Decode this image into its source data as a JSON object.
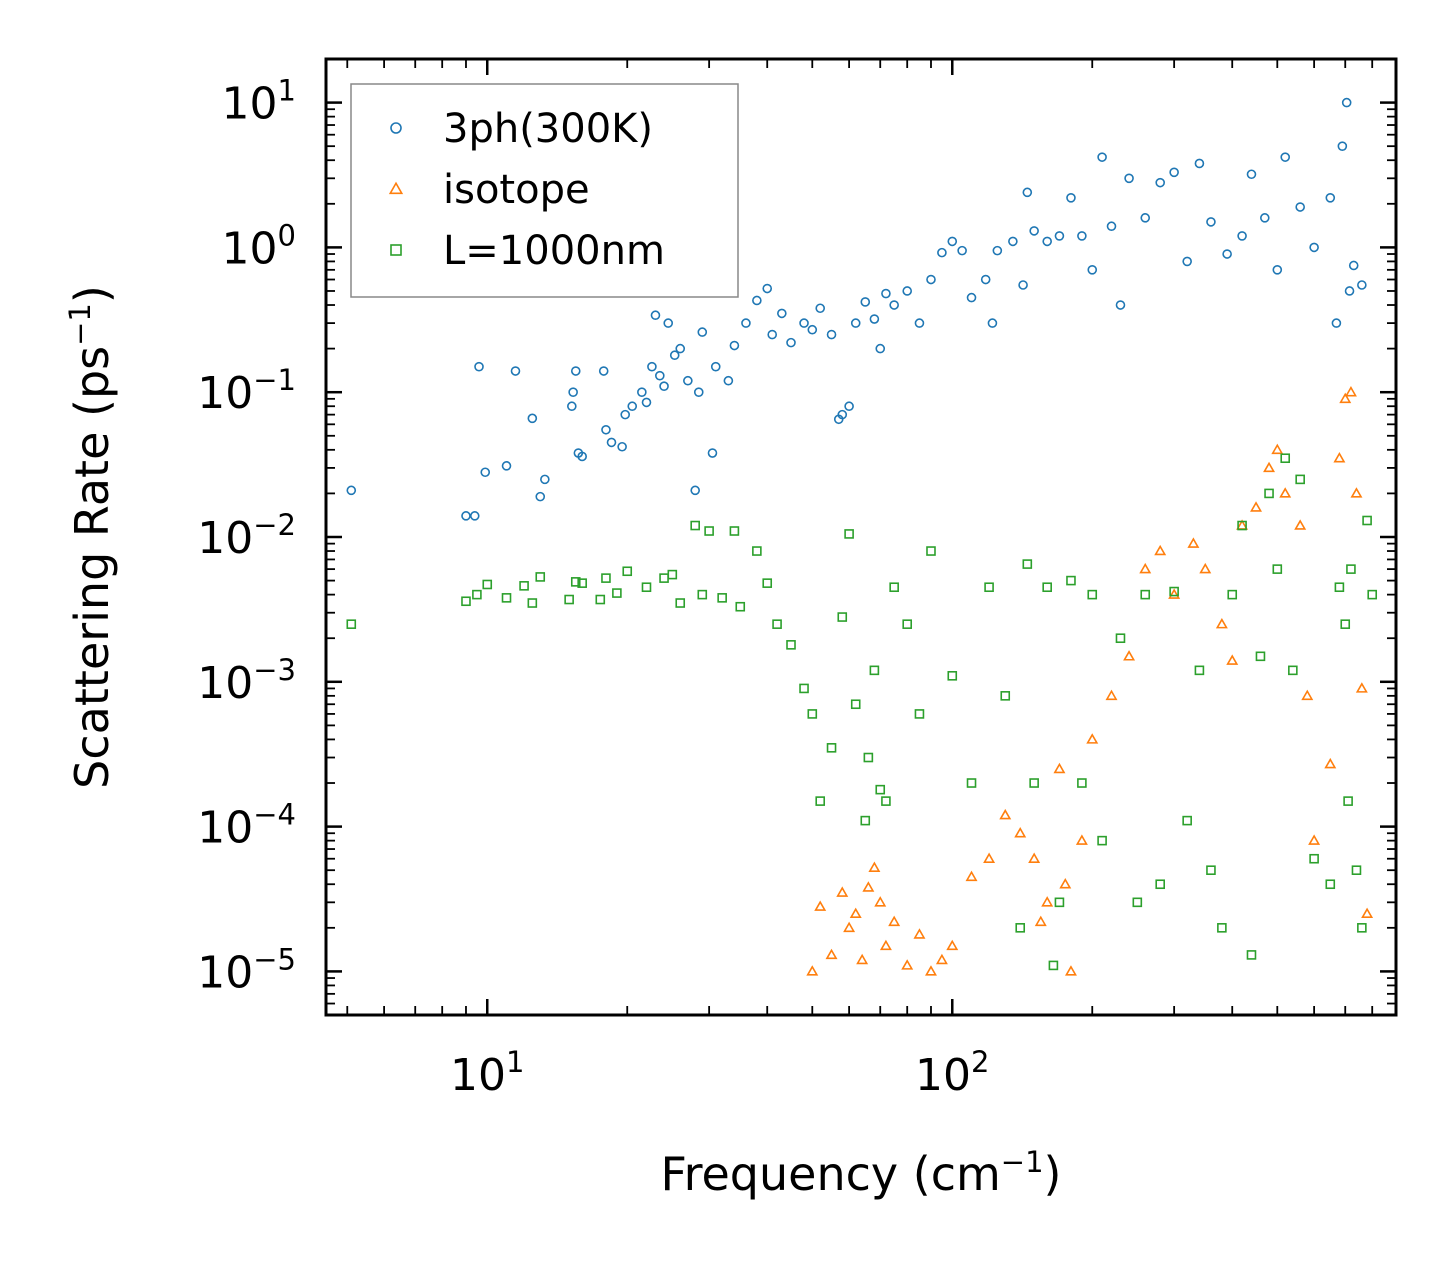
{
  "chart_data": {
    "type": "scatter",
    "title": "",
    "xlabel": "Frequency (cm",
    "xlabel_sup": "−1",
    "xlabel_end": ")",
    "ylabel": "Scattering Rate (ps",
    "ylabel_sup": "−1",
    "ylabel_end": ")",
    "xscale": "log",
    "yscale": "log",
    "xlim": [
      4.5,
      900
    ],
    "ylim": [
      5e-06,
      20
    ],
    "x_ticks": [
      {
        "value": 10,
        "base": "10",
        "exp": "1"
      },
      {
        "value": 100,
        "base": "10",
        "exp": "2"
      }
    ],
    "y_ticks": [
      {
        "value": 10,
        "base": "10",
        "exp": "1"
      },
      {
        "value": 1,
        "base": "10",
        "exp": "0"
      },
      {
        "value": 0.1,
        "base": "10",
        "exp": "−1"
      },
      {
        "value": 0.01,
        "base": "10",
        "exp": "−2"
      },
      {
        "value": 0.001,
        "base": "10",
        "exp": "−3"
      },
      {
        "value": 0.0001,
        "base": "10",
        "exp": "−4"
      },
      {
        "value": 1e-05,
        "base": "10",
        "exp": "−5"
      }
    ],
    "legend_position": "top-left",
    "series": [
      {
        "name": "3ph(300K)",
        "marker": "circle",
        "color": "#1f77b4",
        "points": [
          [
            5.1,
            0.021
          ],
          [
            9.0,
            0.014
          ],
          [
            9.4,
            0.014
          ],
          [
            9.6,
            0.15
          ],
          [
            9.9,
            0.028
          ],
          [
            11.0,
            0.031
          ],
          [
            11.5,
            0.14
          ],
          [
            12.5,
            0.066
          ],
          [
            13.0,
            0.019
          ],
          [
            13.3,
            0.025
          ],
          [
            15.2,
            0.08
          ],
          [
            15.3,
            0.1
          ],
          [
            15.5,
            0.14
          ],
          [
            15.7,
            0.038
          ],
          [
            16.0,
            0.036
          ],
          [
            17.8,
            0.14
          ],
          [
            18.0,
            0.055
          ],
          [
            18.5,
            0.045
          ],
          [
            19.5,
            0.042
          ],
          [
            19.8,
            0.07
          ],
          [
            20.5,
            0.08
          ],
          [
            21.5,
            0.1
          ],
          [
            22.0,
            0.085
          ],
          [
            22.6,
            0.15
          ],
          [
            23.0,
            0.34
          ],
          [
            23.5,
            0.13
          ],
          [
            24.0,
            0.11
          ],
          [
            24.5,
            0.3
          ],
          [
            25.3,
            0.18
          ],
          [
            26.0,
            0.2
          ],
          [
            27.0,
            0.12
          ],
          [
            28.0,
            0.021
          ],
          [
            28.5,
            0.1
          ],
          [
            29.0,
            0.26
          ],
          [
            30.5,
            0.038
          ],
          [
            31.0,
            0.15
          ],
          [
            33.0,
            0.12
          ],
          [
            34.0,
            0.21
          ],
          [
            36.0,
            0.3
          ],
          [
            38.0,
            0.43
          ],
          [
            40.0,
            0.52
          ],
          [
            41.0,
            0.25
          ],
          [
            43.0,
            0.35
          ],
          [
            45.0,
            0.22
          ],
          [
            48.0,
            0.3
          ],
          [
            50.0,
            0.27
          ],
          [
            52.0,
            0.38
          ],
          [
            55.0,
            0.25
          ],
          [
            57.0,
            0.065
          ],
          [
            58.0,
            0.07
          ],
          [
            60.0,
            0.08
          ],
          [
            62.0,
            0.3
          ],
          [
            65.0,
            0.42
          ],
          [
            68.0,
            0.32
          ],
          [
            70.0,
            0.2
          ],
          [
            72.0,
            0.48
          ],
          [
            75.0,
            0.4
          ],
          [
            80.0,
            0.5
          ],
          [
            85.0,
            0.3
          ],
          [
            90.0,
            0.6
          ],
          [
            95.0,
            0.92
          ],
          [
            100.0,
            1.1
          ],
          [
            105.0,
            0.95
          ],
          [
            110.0,
            0.45
          ],
          [
            118.0,
            0.6
          ],
          [
            122.0,
            0.3
          ],
          [
            125.0,
            0.95
          ],
          [
            135.0,
            1.1
          ],
          [
            142.0,
            0.55
          ],
          [
            145.0,
            2.4
          ],
          [
            150.0,
            1.3
          ],
          [
            160.0,
            1.1
          ],
          [
            170.0,
            1.2
          ],
          [
            180.0,
            2.2
          ],
          [
            190.0,
            1.2
          ],
          [
            200.0,
            0.7
          ],
          [
            210.0,
            4.2
          ],
          [
            220.0,
            1.4
          ],
          [
            230.0,
            0.4
          ],
          [
            240.0,
            3.0
          ],
          [
            260.0,
            1.6
          ],
          [
            280.0,
            2.8
          ],
          [
            300.0,
            3.3
          ],
          [
            320.0,
            0.8
          ],
          [
            340.0,
            3.8
          ],
          [
            360.0,
            1.5
          ],
          [
            390.0,
            0.9
          ],
          [
            420.0,
            1.2
          ],
          [
            440.0,
            3.2
          ],
          [
            470.0,
            1.6
          ],
          [
            500.0,
            0.7
          ],
          [
            520.0,
            4.2
          ],
          [
            560.0,
            1.9
          ],
          [
            600.0,
            1.0
          ],
          [
            650.0,
            2.2
          ],
          [
            670.0,
            0.3
          ],
          [
            690.0,
            5.0
          ],
          [
            705.0,
            10.0
          ],
          [
            715.0,
            0.5
          ],
          [
            730.0,
            0.75
          ],
          [
            760.0,
            0.55
          ]
        ]
      },
      {
        "name": "isotope",
        "marker": "triangle",
        "color": "#ff7f0e",
        "points": [
          [
            50,
            1e-05
          ],
          [
            52,
            2.8e-05
          ],
          [
            55,
            1.3e-05
          ],
          [
            58,
            3.5e-05
          ],
          [
            60,
            2e-05
          ],
          [
            62,
            2.5e-05
          ],
          [
            64,
            1.2e-05
          ],
          [
            66,
            3.8e-05
          ],
          [
            68,
            5.2e-05
          ],
          [
            70,
            3e-05
          ],
          [
            72,
            1.5e-05
          ],
          [
            75,
            2.2e-05
          ],
          [
            80,
            1.1e-05
          ],
          [
            85,
            1.8e-05
          ],
          [
            90,
            1e-05
          ],
          [
            95,
            1.2e-05
          ],
          [
            100,
            1.5e-05
          ],
          [
            110,
            4.5e-05
          ],
          [
            120,
            6e-05
          ],
          [
            130,
            0.00012
          ],
          [
            140,
            9e-05
          ],
          [
            150,
            6e-05
          ],
          [
            155,
            2.2e-05
          ],
          [
            160,
            3e-05
          ],
          [
            170,
            0.00025
          ],
          [
            175,
            4e-05
          ],
          [
            180,
            1e-05
          ],
          [
            190,
            8e-05
          ],
          [
            200,
            0.0004
          ],
          [
            220,
            0.0008
          ],
          [
            240,
            0.0015
          ],
          [
            260,
            0.006
          ],
          [
            280,
            0.008
          ],
          [
            300,
            0.004
          ],
          [
            330,
            0.009
          ],
          [
            350,
            0.006
          ],
          [
            380,
            0.0025
          ],
          [
            400,
            0.0014
          ],
          [
            420,
            0.012
          ],
          [
            450,
            0.016
          ],
          [
            480,
            0.03
          ],
          [
            500,
            0.04
          ],
          [
            520,
            0.02
          ],
          [
            560,
            0.012
          ],
          [
            580,
            0.0008
          ],
          [
            600,
            8e-05
          ],
          [
            650,
            0.00027
          ],
          [
            680,
            0.035
          ],
          [
            700,
            0.09
          ],
          [
            720,
            0.1
          ],
          [
            740,
            0.02
          ],
          [
            760,
            0.0009
          ],
          [
            780,
            2.5e-05
          ]
        ]
      },
      {
        "name": "L=1000nm",
        "marker": "square",
        "color": "#2ca02c",
        "points": [
          [
            5.1,
            0.0025
          ],
          [
            9.0,
            0.0036
          ],
          [
            9.5,
            0.004
          ],
          [
            10.0,
            0.0047
          ],
          [
            11.0,
            0.0038
          ],
          [
            12.0,
            0.0046
          ],
          [
            12.5,
            0.0035
          ],
          [
            13.0,
            0.0053
          ],
          [
            15.0,
            0.0037
          ],
          [
            15.5,
            0.0049
          ],
          [
            16.0,
            0.0048
          ],
          [
            17.5,
            0.0037
          ],
          [
            18.0,
            0.0052
          ],
          [
            19.0,
            0.0041
          ],
          [
            20.0,
            0.0058
          ],
          [
            22.0,
            0.0045
          ],
          [
            24.0,
            0.0052
          ],
          [
            25.0,
            0.0055
          ],
          [
            26.0,
            0.0035
          ],
          [
            28.0,
            0.012
          ],
          [
            29.0,
            0.004
          ],
          [
            30.0,
            0.011
          ],
          [
            32.0,
            0.0038
          ],
          [
            34.0,
            0.011
          ],
          [
            35.0,
            0.0033
          ],
          [
            38.0,
            0.008
          ],
          [
            40.0,
            0.0048
          ],
          [
            42.0,
            0.0025
          ],
          [
            45.0,
            0.0018
          ],
          [
            48.0,
            0.0009
          ],
          [
            50.0,
            0.0006
          ],
          [
            52.0,
            0.00015
          ],
          [
            55.0,
            0.00035
          ],
          [
            58.0,
            0.0028
          ],
          [
            60.0,
            0.0105
          ],
          [
            62.0,
            0.0007
          ],
          [
            65.0,
            0.00011
          ],
          [
            66.0,
            0.0003
          ],
          [
            68.0,
            0.0012
          ],
          [
            70.0,
            0.00018
          ],
          [
            72.0,
            0.00015
          ],
          [
            75.0,
            0.0045
          ],
          [
            80.0,
            0.0025
          ],
          [
            85.0,
            0.0006
          ],
          [
            90.0,
            0.008
          ],
          [
            100.0,
            0.0011
          ],
          [
            110.0,
            0.0002
          ],
          [
            120.0,
            0.0045
          ],
          [
            130.0,
            0.0008
          ],
          [
            140.0,
            2e-05
          ],
          [
            145.0,
            0.0065
          ],
          [
            150.0,
            0.0002
          ],
          [
            160.0,
            0.0045
          ],
          [
            165.0,
            1.1e-05
          ],
          [
            170.0,
            3e-05
          ],
          [
            180.0,
            0.005
          ],
          [
            190.0,
            0.0002
          ],
          [
            200.0,
            0.004
          ],
          [
            210.0,
            8e-05
          ],
          [
            230.0,
            0.002
          ],
          [
            250.0,
            3e-05
          ],
          [
            260.0,
            0.004
          ],
          [
            280.0,
            4e-05
          ],
          [
            300.0,
            0.0042
          ],
          [
            320.0,
            0.00011
          ],
          [
            340.0,
            0.0012
          ],
          [
            360.0,
            5e-05
          ],
          [
            380.0,
            2e-05
          ],
          [
            400.0,
            0.004
          ],
          [
            420.0,
            0.012
          ],
          [
            440.0,
            1.3e-05
          ],
          [
            460.0,
            0.0015
          ],
          [
            480.0,
            0.02
          ],
          [
            500.0,
            0.006
          ],
          [
            520.0,
            0.035
          ],
          [
            540.0,
            0.0012
          ],
          [
            560.0,
            0.025
          ],
          [
            600.0,
            6e-05
          ],
          [
            650.0,
            4e-05
          ],
          [
            680.0,
            0.0045
          ],
          [
            700.0,
            0.0025
          ],
          [
            710.0,
            0.00015
          ],
          [
            720.0,
            0.006
          ],
          [
            740.0,
            5e-05
          ],
          [
            760.0,
            2e-05
          ],
          [
            780.0,
            0.013
          ],
          [
            800.0,
            0.004
          ]
        ]
      }
    ]
  }
}
